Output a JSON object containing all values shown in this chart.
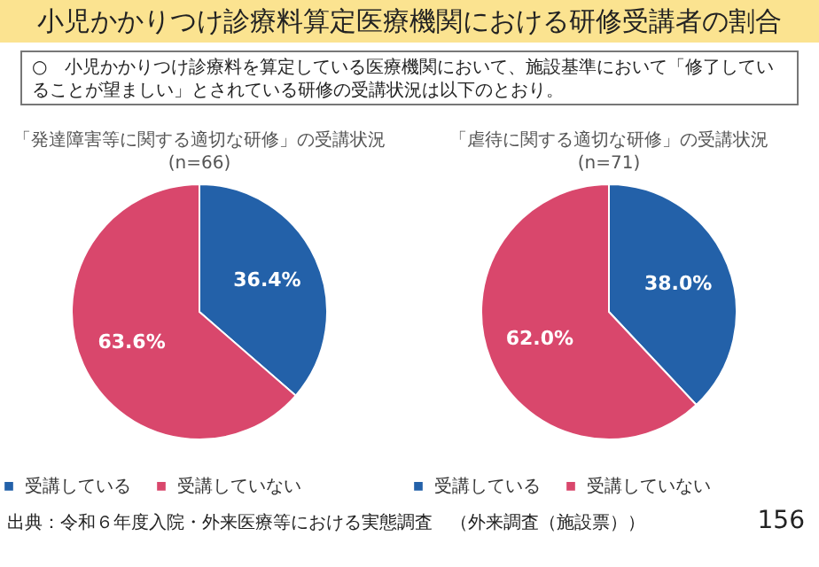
{
  "chart_data": [
    {
      "type": "pie",
      "title": "「発達障害等に関する適切な研修」の受講状況",
      "subtitle": "(n=66)",
      "categories": [
        "受講している",
        "受講していない"
      ],
      "values": [
        36.4,
        63.6
      ],
      "value_labels": [
        "36.4%",
        "63.6%"
      ],
      "colors": [
        "#2361a9",
        "#d9476c"
      ],
      "legend": "bottom",
      "annotations": [
        "小児かかりつけ診療料算定医療機関における研修受講者の割合",
        "○　小児かかりつけ診療料を算定している医療機関において、施設基準において「修了していることが望ましい」とされている研修の受講状況は以下のとおり。",
        "出典：令和６年度入院・外来医療等における実態調査　（外来調査（施設票））",
        "156"
      ]
    },
    {
      "type": "pie",
      "title": "「虐待に関する適切な研修」の受講状況",
      "subtitle": "(n=71)",
      "categories": [
        "受講している",
        "受講していない"
      ],
      "values": [
        38.0,
        62.0
      ],
      "value_labels": [
        "38.0%",
        "62.0%"
      ],
      "colors": [
        "#2361a9",
        "#d9476c"
      ],
      "legend": "bottom"
    }
  ]
}
